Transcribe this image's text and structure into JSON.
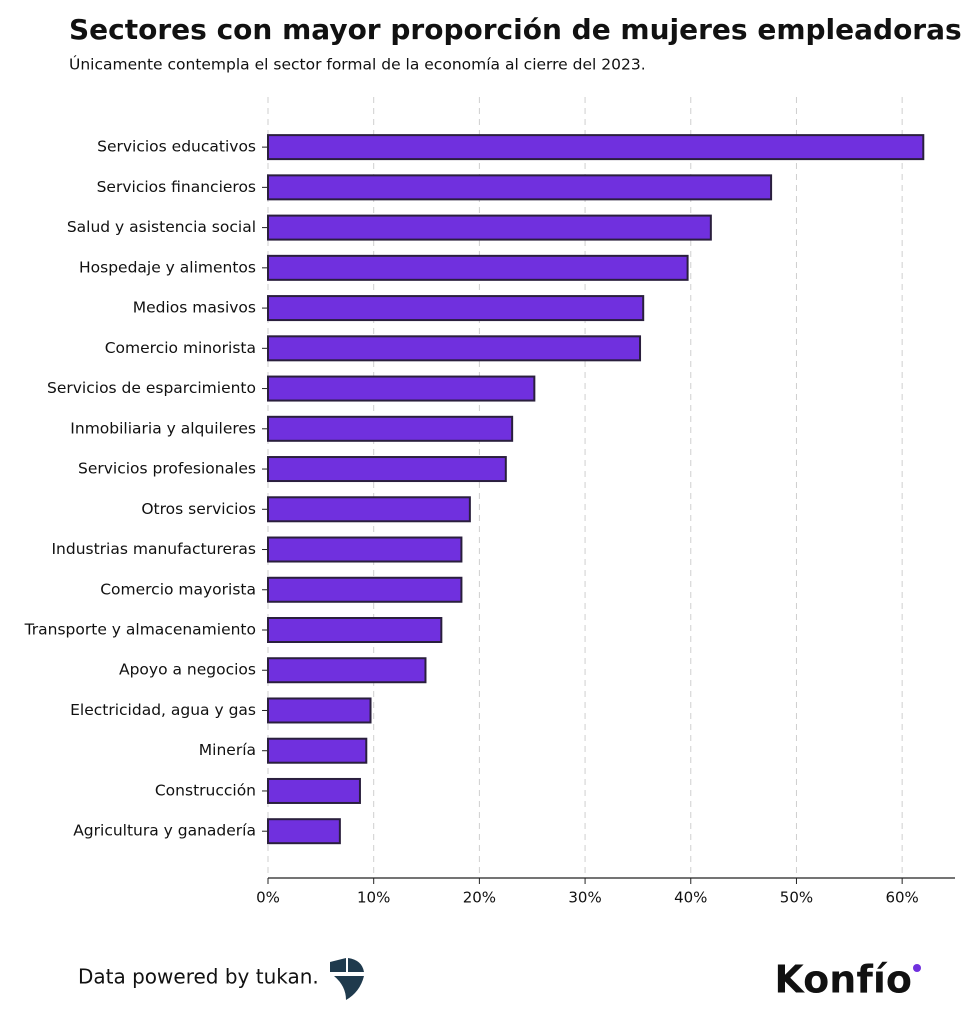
{
  "chart_data": {
    "type": "barh",
    "title": "Sectores con mayor proporción de mujeres empleadoras",
    "subtitle": "Únicamente contempla el sector formal de la economía al cierre del 2023.",
    "categories": [
      "Servicios educativos",
      "Servicios financieros",
      "Salud y asistencia social",
      "Hospedaje y alimentos",
      "Medios masivos",
      "Comercio minorista",
      "Servicios de esparcimiento",
      "Inmobiliaria y alquileres",
      "Servicios profesionales",
      "Otros servicios",
      "Industrias manufactureras",
      "Comercio mayorista",
      "Transporte y almacenamiento",
      "Apoyo a negocios",
      "Electricidad, agua y gas",
      "Minería",
      "Construcción",
      "Agricultura y ganadería"
    ],
    "values": [
      62.0,
      47.6,
      41.9,
      39.7,
      35.5,
      35.2,
      25.2,
      23.1,
      22.5,
      19.1,
      18.3,
      18.3,
      16.4,
      14.9,
      9.7,
      9.3,
      8.7,
      6.8
    ],
    "color": "#7030de",
    "xlim": [
      0,
      65
    ],
    "xticks": [
      {
        "value": 0,
        "label": "0%"
      },
      {
        "value": 10,
        "label": "10%"
      },
      {
        "value": 20,
        "label": "20%"
      },
      {
        "value": 30,
        "label": "30%"
      },
      {
        "value": 40,
        "label": "40%"
      },
      {
        "value": 50,
        "label": "50%"
      },
      {
        "value": 60,
        "label": "60%"
      }
    ],
    "grid": true
  },
  "footer": {
    "credit": "Data powered by tukan.",
    "brand": "Konfío"
  }
}
